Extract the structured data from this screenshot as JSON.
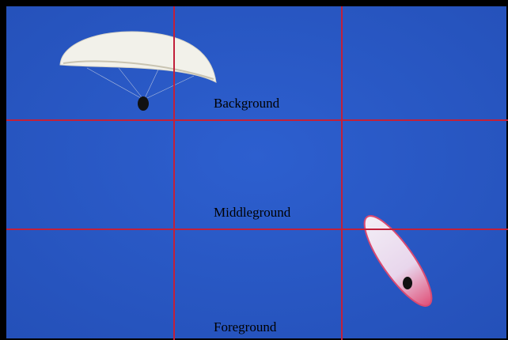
{
  "labels": {
    "background": "Background",
    "middleground": "Middleground",
    "foreground": "Foreground"
  }
}
